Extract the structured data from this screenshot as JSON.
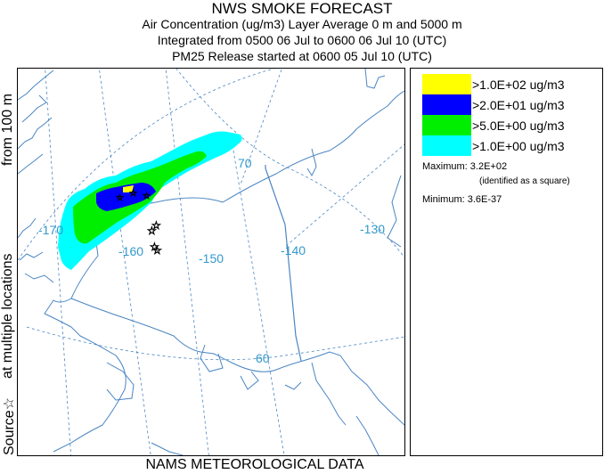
{
  "titles": {
    "line1": "NWS SMOKE FORECAST",
    "line2": "Air Concentration (ug/m3) Layer Average    0 m and  5000 m",
    "line3": "Integrated from 0500 06 Jul to 0600 06 Jul 10 (UTC)",
    "line4": "PM25 Release started at 0600 05 Jul 10 (UTC)"
  },
  "side_labels": {
    "top": "from   100 m",
    "middle": "at multiple locations",
    "bottom": "Source☆"
  },
  "map": {
    "lon_labels": [
      "-170",
      "-160",
      "-150",
      "-140",
      "-130"
    ],
    "lat_labels": [
      "70",
      "60"
    ],
    "colors": {
      "coast": "#4a86c2",
      "grid": "#4a86c2",
      "label": "#3399cc",
      "border": "#4a86c2"
    }
  },
  "legend": {
    "items": [
      {
        "label": ">1.0E+02 ug/m3",
        "color": "#ffff00"
      },
      {
        "label": ">2.0E+01 ug/m3",
        "color": "#0000ff"
      },
      {
        "label": ">5.0E+00 ug/m3",
        "color": "#00ee00"
      },
      {
        "label": ">1.0E+00 ug/m3",
        "color": "#00ffff"
      }
    ],
    "maximum": "Maximum: 3.2E+02",
    "maximum_note": "(identified as a square)",
    "minimum": "Minimum: 3.6E-37"
  },
  "footer": "NAMS METEOROLOGICAL DATA"
}
